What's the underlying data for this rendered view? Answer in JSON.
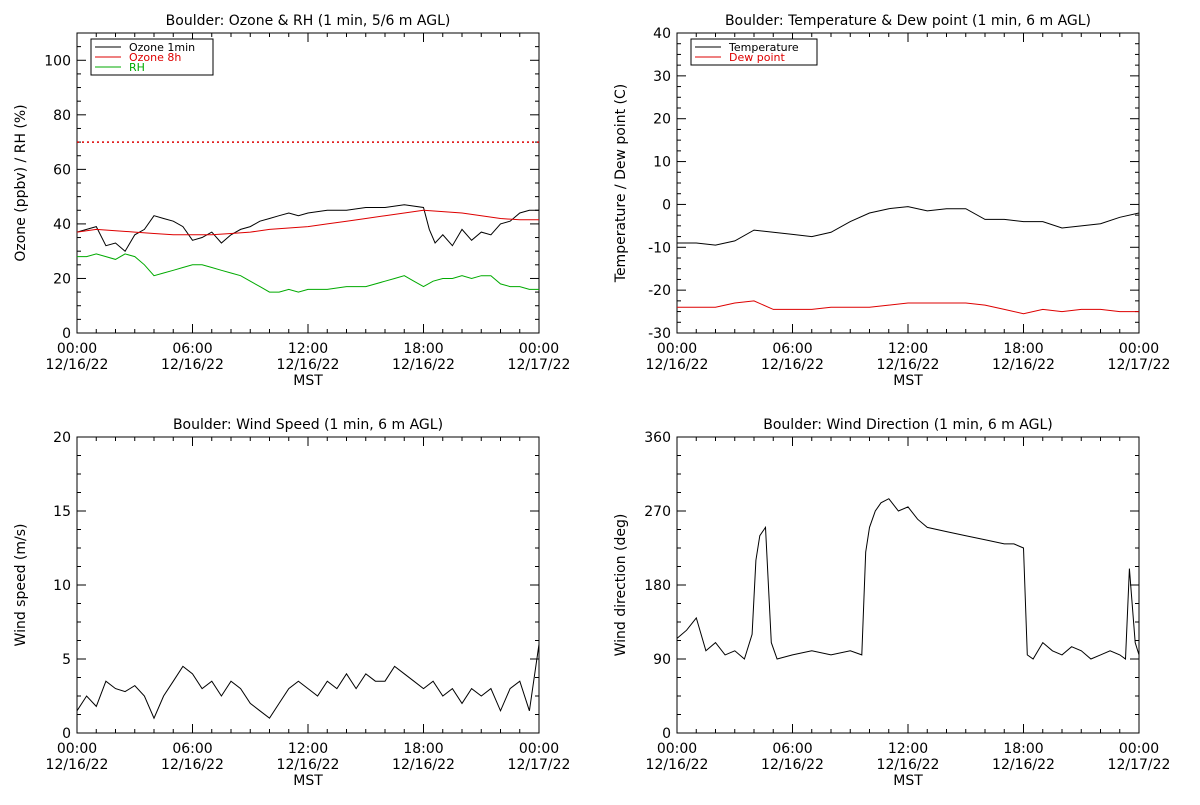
{
  "colors": {
    "ozone1": "#000000",
    "ozone8": "#dd0000",
    "rh": "#00aa00",
    "temp": "#000000",
    "dew": "#dd0000",
    "axis": "#000000"
  },
  "x_axis": {
    "label": "MST",
    "ticks": [
      {
        "time": "00:00",
        "date": "12/16/22",
        "hour": 0
      },
      {
        "time": "06:00",
        "date": "12/16/22",
        "hour": 6
      },
      {
        "time": "12:00",
        "date": "12/16/22",
        "hour": 12
      },
      {
        "time": "18:00",
        "date": "12/16/22",
        "hour": 18
      },
      {
        "time": "00:00",
        "date": "12/17/22",
        "hour": 24
      }
    ]
  },
  "chart_data": [
    {
      "type": "line",
      "title": "Boulder: Ozone & RH (1 min, 5/6 m AGL)",
      "xlabel": "MST",
      "ylabel": "Ozone (ppbv) / RH (%)",
      "xlim": [
        0,
        24
      ],
      "ylim": [
        0,
        110
      ],
      "yticks": [
        0,
        20,
        40,
        60,
        80,
        100
      ],
      "legend_position": "top-left",
      "reference_line": {
        "y": 70,
        "style": "dotted",
        "color": "#dd0000"
      },
      "series": [
        {
          "name": "Ozone 1min",
          "color": "#000000",
          "x": [
            0,
            0.5,
            1,
            1.5,
            2,
            2.5,
            3,
            3.5,
            4,
            4.5,
            5,
            5.5,
            6,
            6.5,
            7,
            7.5,
            8,
            8.5,
            9,
            9.5,
            10,
            10.5,
            11,
            11.5,
            12,
            13,
            14,
            15,
            16,
            17,
            18,
            18.3,
            18.6,
            19,
            19.5,
            20,
            20.5,
            21,
            21.5,
            22,
            22.5,
            23,
            23.5,
            24
          ],
          "y": [
            37,
            38,
            39,
            32,
            33,
            30,
            36,
            38,
            43,
            42,
            41,
            39,
            34,
            35,
            37,
            33,
            36,
            38,
            39,
            41,
            42,
            43,
            44,
            43,
            44,
            45,
            45,
            46,
            46,
            47,
            46,
            38,
            33,
            36,
            32,
            38,
            34,
            37,
            36,
            40,
            41,
            44,
            45,
            45
          ]
        },
        {
          "name": "Ozone 8h",
          "color": "#dd0000",
          "x": [
            0,
            1,
            2,
            3,
            4,
            5,
            6,
            7,
            8,
            9,
            10,
            11,
            12,
            13,
            14,
            15,
            16,
            17,
            18,
            19,
            20,
            21,
            22,
            23,
            24
          ],
          "y": [
            37,
            38,
            37.5,
            37,
            36.5,
            36,
            36,
            36,
            36.5,
            37,
            38,
            38.5,
            39,
            40,
            41,
            42,
            43,
            44,
            45,
            44.5,
            44,
            43,
            42,
            41.5,
            41.5
          ]
        },
        {
          "name": "RH",
          "color": "#00aa00",
          "x": [
            0,
            0.5,
            1,
            1.5,
            2,
            2.5,
            3,
            3.5,
            4,
            4.5,
            5,
            5.5,
            6,
            6.5,
            7,
            7.5,
            8,
            8.5,
            9,
            9.5,
            10,
            10.5,
            11,
            11.5,
            12,
            13,
            14,
            15,
            16,
            16.5,
            17,
            17.5,
            18,
            18.5,
            19,
            19.5,
            20,
            20.5,
            21,
            21.5,
            22,
            22.5,
            23,
            23.5,
            24
          ],
          "y": [
            28,
            28,
            29,
            28,
            27,
            29,
            28,
            25,
            21,
            22,
            23,
            24,
            25,
            25,
            24,
            23,
            22,
            21,
            19,
            17,
            15,
            15,
            16,
            15,
            16,
            16,
            17,
            17,
            19,
            20,
            21,
            19,
            17,
            19,
            20,
            20,
            21,
            20,
            21,
            21,
            18,
            17,
            17,
            16,
            16
          ]
        }
      ]
    },
    {
      "type": "line",
      "title": "Boulder: Temperature & Dew point (1 min, 6 m AGL)",
      "xlabel": "MST",
      "ylabel": "Temperature / Dew point (C)",
      "xlim": [
        0,
        24
      ],
      "ylim": [
        -30,
        40
      ],
      "yticks": [
        -30,
        -20,
        -10,
        0,
        10,
        20,
        30,
        40
      ],
      "legend_position": "top-left",
      "series": [
        {
          "name": "Temperature",
          "color": "#000000",
          "x": [
            0,
            1,
            2,
            3,
            4,
            5,
            6,
            7,
            8,
            9,
            10,
            11,
            12,
            13,
            14,
            15,
            16,
            17,
            18,
            19,
            20,
            21,
            22,
            23,
            24
          ],
          "y": [
            -9,
            -9,
            -9.5,
            -8.5,
            -6,
            -6.5,
            -7,
            -7.5,
            -6.5,
            -4,
            -2,
            -1,
            -0.5,
            -1.5,
            -1,
            -1,
            -3.5,
            -3.5,
            -4,
            -4,
            -5.5,
            -5,
            -4.5,
            -3,
            -2
          ]
        },
        {
          "name": "Dew point",
          "color": "#dd0000",
          "x": [
            0,
            1,
            2,
            3,
            4,
            5,
            6,
            7,
            8,
            9,
            10,
            11,
            12,
            13,
            14,
            15,
            16,
            17,
            18,
            19,
            20,
            21,
            22,
            23,
            24
          ],
          "y": [
            -24,
            -24,
            -24,
            -23,
            -22.5,
            -24.5,
            -24.5,
            -24.5,
            -24,
            -24,
            -24,
            -23.5,
            -23,
            -23,
            -23,
            -23,
            -23.5,
            -24.5,
            -25.5,
            -24.5,
            -25,
            -24.5,
            -24.5,
            -25,
            -25
          ]
        }
      ]
    },
    {
      "type": "line",
      "title": "Boulder: Wind Speed (1 min, 6 m AGL)",
      "xlabel": "MST",
      "ylabel": "Wind speed (m/s)",
      "xlim": [
        0,
        24
      ],
      "ylim": [
        0,
        20
      ],
      "yticks": [
        0,
        5,
        10,
        15,
        20
      ],
      "series": [
        {
          "name": "Wind speed",
          "color": "#000000",
          "x": [
            0,
            0.5,
            1,
            1.5,
            2,
            2.5,
            3,
            3.5,
            4,
            4.5,
            5,
            5.5,
            6,
            6.5,
            7,
            7.5,
            8,
            8.5,
            9,
            9.5,
            10,
            10.5,
            11,
            11.5,
            12,
            12.5,
            13,
            13.5,
            14,
            14.5,
            15,
            15.5,
            16,
            16.5,
            17,
            17.5,
            18,
            18.5,
            19,
            19.5,
            20,
            20.5,
            21,
            21.5,
            22,
            22.5,
            23,
            23.5,
            24
          ],
          "y": [
            1.5,
            2.5,
            1.8,
            3.5,
            3,
            2.8,
            3.2,
            2.5,
            1,
            2.5,
            3.5,
            4.5,
            4,
            3,
            3.5,
            2.5,
            3.5,
            3,
            2,
            1.5,
            1,
            2,
            3,
            3.5,
            3,
            2.5,
            3.5,
            3,
            4,
            3,
            4,
            3.5,
            3.5,
            4.5,
            4,
            3.5,
            3,
            3.5,
            2.5,
            3,
            2,
            3,
            2.5,
            3,
            1.5,
            3,
            3.5,
            1.5,
            6
          ]
        }
      ]
    },
    {
      "type": "line",
      "title": "Boulder: Wind Direction (1 min, 6 m AGL)",
      "xlabel": "MST",
      "ylabel": "Wind direction (deg)",
      "xlim": [
        0,
        24
      ],
      "ylim": [
        0,
        360
      ],
      "yticks": [
        0,
        90,
        180,
        270,
        360
      ],
      "series": [
        {
          "name": "Wind direction",
          "color": "#000000",
          "x": [
            0,
            0.5,
            1,
            1.5,
            2,
            2.5,
            3,
            3.5,
            3.9,
            4.1,
            4.3,
            4.6,
            4.9,
            5.2,
            6,
            7,
            8,
            9,
            9.6,
            9.8,
            10,
            10.3,
            10.6,
            11,
            11.5,
            12,
            12.5,
            13,
            14,
            15,
            16,
            17,
            17.5,
            18,
            18.2,
            18.5,
            19,
            19.5,
            20,
            20.5,
            21,
            21.5,
            22,
            22.5,
            23,
            23.3,
            23.5,
            23.8,
            24
          ],
          "y": [
            115,
            125,
            140,
            100,
            110,
            95,
            100,
            90,
            120,
            210,
            240,
            250,
            110,
            90,
            95,
            100,
            95,
            100,
            95,
            220,
            250,
            270,
            280,
            285,
            270,
            275,
            260,
            250,
            245,
            240,
            235,
            230,
            230,
            225,
            95,
            90,
            110,
            100,
            95,
            105,
            100,
            90,
            95,
            100,
            95,
            90,
            200,
            110,
            95
          ]
        }
      ]
    }
  ]
}
